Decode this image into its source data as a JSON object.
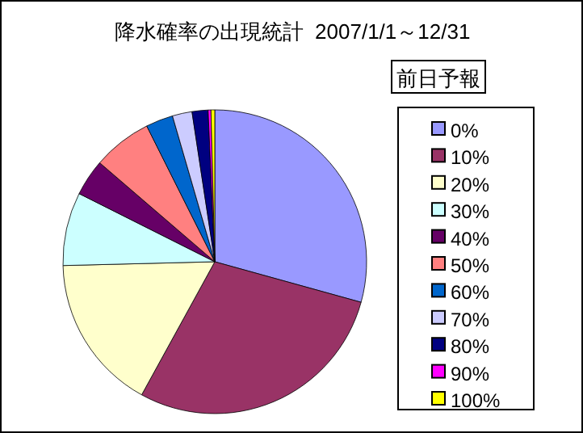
{
  "chart_data": {
    "type": "pie",
    "title": "降水確率の出現統計  2007/1/1～12/31",
    "legend_title": "前日予報",
    "legend": "right",
    "categories": [
      "0%",
      "10%",
      "20%",
      "30%",
      "40%",
      "50%",
      "60%",
      "70%",
      "80%",
      "90%",
      "100%"
    ],
    "values": [
      29.3,
      28.7,
      16.6,
      7.8,
      3.9,
      6.3,
      2.9,
      2.1,
      1.7,
      0.3,
      0.4
    ],
    "colors": [
      "#9999ff",
      "#993366",
      "#ffffcc",
      "#ccffff",
      "#660066",
      "#ff8080",
      "#0066cc",
      "#ccccff",
      "#000080",
      "#ff00ff",
      "#ffff00"
    ]
  }
}
